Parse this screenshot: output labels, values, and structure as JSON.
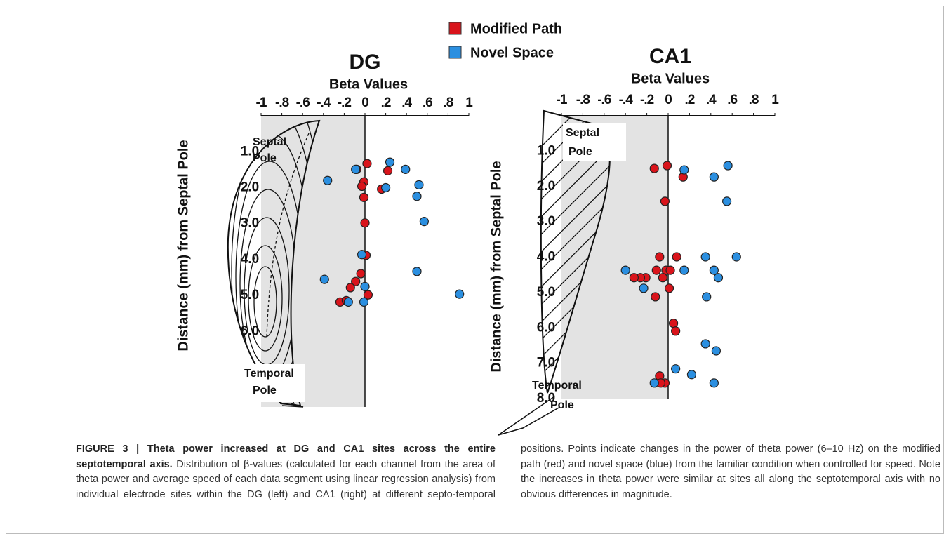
{
  "chart_data": [
    {
      "type": "scatter",
      "title": "DG",
      "xlabel": "Beta Values",
      "ylabel": "Distance (mm) from Septal Pole",
      "xlim": [
        -1,
        1
      ],
      "xticks": [
        -1,
        {
          "value": -0.8,
          "label": "-.8"
        },
        {
          "value": -0.6,
          "label": "-.6"
        },
        {
          "value": -0.4,
          "label": "-.4"
        },
        {
          "value": -0.2,
          "label": "-.2"
        },
        0,
        {
          "value": 0.2,
          "label": ".2"
        },
        {
          "value": 0.4,
          "label": ".4"
        },
        {
          "value": 0.6,
          "label": ".6"
        },
        {
          "value": 0.8,
          "label": ".8"
        },
        1
      ],
      "ylim": [
        8.1,
        0
      ],
      "yticks": [
        {
          "value": 1,
          "label": "1.0"
        },
        {
          "value": 2,
          "label": "2.0"
        },
        {
          "value": 3,
          "label": "3.0"
        },
        {
          "value": 4,
          "label": "4.0"
        },
        {
          "value": 5,
          "label": "5.0"
        },
        {
          "value": 6,
          "label": "6.0"
        }
      ],
      "series": [
        {
          "name": "Modified Path",
          "color": "#d9141b",
          "x": [
            0.02,
            0.22,
            -0.08,
            -0.01,
            -0.03,
            0.16,
            -0.01,
            0.0,
            0.01,
            -0.04,
            -0.09,
            -0.14,
            0.03,
            -0.24,
            -0.18
          ],
          "values": [
            1.33,
            1.53,
            1.49,
            1.84,
            1.96,
            2.04,
            2.27,
            2.98,
            3.88,
            4.39,
            4.61,
            4.78,
            4.98,
            5.18,
            5.14
          ]
        },
        {
          "name": "Novel Space",
          "color": "#2b8fe0",
          "x": [
            0.24,
            0.39,
            -0.09,
            -0.36,
            0.2,
            0.52,
            0.5,
            0.57,
            -0.03,
            0.5,
            -0.39,
            0.0,
            0.91,
            -0.16,
            -0.01
          ],
          "values": [
            1.29,
            1.49,
            1.49,
            1.8,
            2.0,
            1.92,
            2.24,
            2.94,
            3.86,
            4.33,
            4.55,
            4.75,
            4.96,
            5.18,
            5.18
          ]
        }
      ],
      "annotations": [
        [
          "Septal",
          "Pole"
        ],
        [
          "Temporal",
          "Pole"
        ]
      ]
    },
    {
      "type": "scatter",
      "title": "CA1",
      "xlabel": "Beta Values",
      "ylabel": "Distance (mm) from Septal Pole",
      "xlim": [
        -1,
        1
      ],
      "xticks": [
        -1,
        {
          "value": -0.8,
          "label": "-.8"
        },
        {
          "value": -0.6,
          "label": "-.6"
        },
        {
          "value": -0.4,
          "label": "-.4"
        },
        {
          "value": -0.2,
          "label": "-.2"
        },
        0,
        {
          "value": 0.2,
          "label": ".2"
        },
        {
          "value": 0.4,
          "label": ".4"
        },
        {
          "value": 0.6,
          "label": ".6"
        },
        {
          "value": 0.8,
          "label": ".8"
        },
        1
      ],
      "ylim": [
        8,
        0
      ],
      "yticks": [
        {
          "value": 1,
          "label": "1.0"
        },
        {
          "value": 2,
          "label": "2.0"
        },
        {
          "value": 3,
          "label": "3.0"
        },
        {
          "value": 4,
          "label": "4.0"
        },
        {
          "value": 5,
          "label": "5.0"
        },
        {
          "value": 6,
          "label": "6.0"
        },
        {
          "value": 7,
          "label": "7.0"
        },
        {
          "value": 8,
          "label": "8.0"
        }
      ],
      "series": [
        {
          "color": "#d9141b",
          "x": [
            -0.13,
            -0.01,
            0.14,
            -0.03,
            -0.08,
            0.08,
            -0.11,
            -0.02,
            0.02,
            -0.21,
            -0.26,
            -0.32,
            -0.05,
            0.01,
            -0.12,
            0.05,
            0.07,
            -0.08,
            -0.03,
            -0.07
          ],
          "values": [
            1.49,
            1.41,
            1.73,
            2.42,
            3.99,
            3.99,
            4.37,
            4.37,
            4.37,
            4.58,
            4.58,
            4.58,
            4.58,
            4.88,
            5.12,
            5.87,
            6.09,
            7.36,
            7.56,
            7.56
          ]
        },
        {
          "color": "#2b8fe0",
          "x": [
            0.15,
            0.56,
            0.43,
            0.55,
            0.35,
            0.64,
            -0.4,
            0.15,
            0.43,
            0.47,
            -0.23,
            0.36,
            0.35,
            0.45,
            0.07,
            0.22,
            -0.13,
            0.43
          ],
          "values": [
            1.53,
            1.41,
            1.73,
            2.42,
            3.99,
            3.99,
            4.37,
            4.37,
            4.37,
            4.58,
            4.88,
            5.12,
            6.45,
            6.65,
            7.16,
            7.32,
            7.56,
            7.56
          ]
        }
      ],
      "annotations": [
        [
          "Septal",
          "Pole"
        ],
        [
          "Temporal",
          "Pole"
        ]
      ]
    }
  ],
  "caption": {
    "figure_label": "FIGURE 3 |",
    "title": "Theta power increased at DG and CA1 sites across the entire septotemporal axis.",
    "body": "Distribution of β-values (calculated for each channel from the area of theta power and average speed of each data segment using linear regression analysis) from individual electrode sites within the DG (left) and CA1 (right) at different septo-temporal positions. Points indicate changes in the power of theta power (6–10 Hz) on the modified path (red) and novel space (blue) from the familiar condition when controlled for speed. Note the increases in theta power were similar at sites all along the septotemporal axis with no obvious differences in magnitude."
  }
}
